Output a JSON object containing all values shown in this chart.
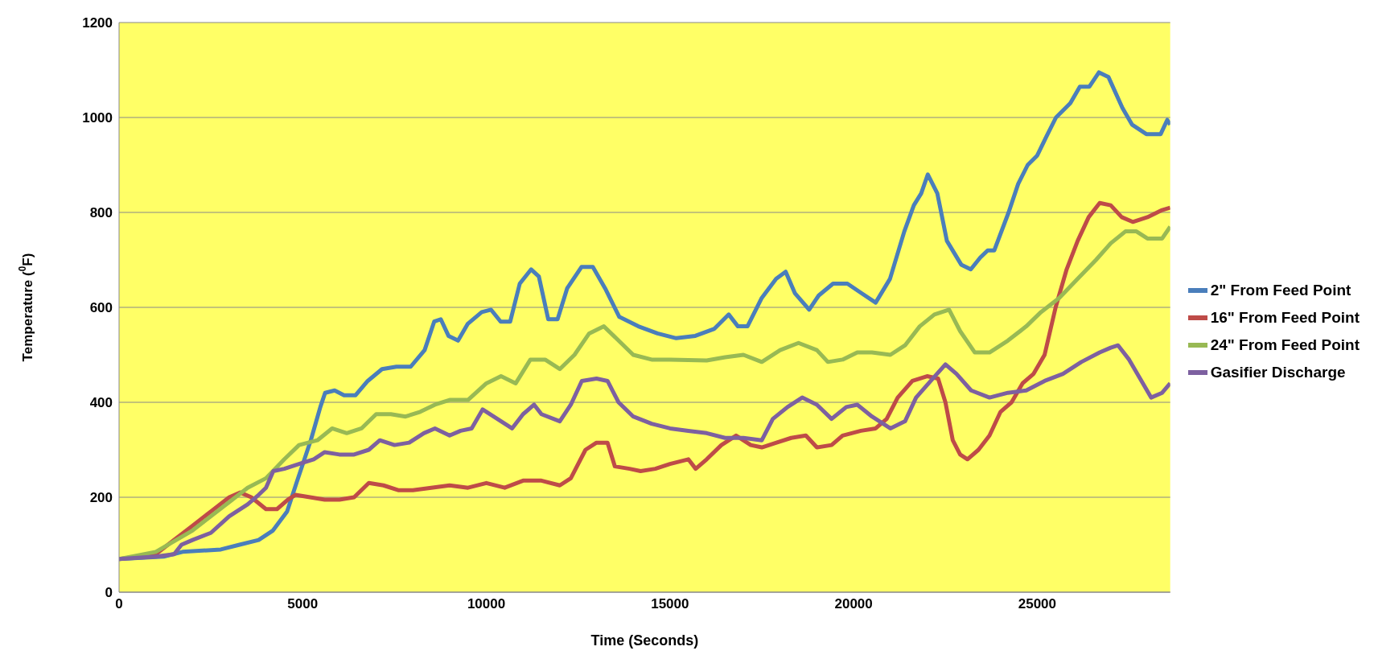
{
  "chart_data": {
    "type": "line",
    "xlabel": "Time (Seconds)",
    "ylabel": "Temperature ($^{0}$F)",
    "xlim": [
      0,
      28620
    ],
    "xticks": [
      0,
      5000,
      10000,
      15000,
      20000,
      25000
    ],
    "ylim": [
      0,
      1200
    ],
    "yticks": [
      0,
      200,
      400,
      600,
      800,
      1000,
      1200
    ],
    "grid": "y",
    "legend": "right",
    "marker": "none",
    "line_style": "solid",
    "series": [
      {
        "name": "2\" From Feed Point",
        "color": "#4a7ebb",
        "x": [
          0,
          1215,
          1730,
          2770,
          3280,
          3800,
          4190,
          4575,
          4830,
          5220,
          5480,
          5610,
          5870,
          6125,
          6440,
          6770,
          7160,
          7550,
          7940,
          8320,
          8580,
          8760,
          8970,
          9230,
          9490,
          9875,
          10130,
          10390,
          10650,
          10910,
          11220,
          11430,
          11685,
          11940,
          12200,
          12590,
          12900,
          13235,
          13620,
          14140,
          14660,
          15170,
          15690,
          16210,
          16600,
          16850,
          17110,
          17500,
          17890,
          18150,
          18400,
          18790,
          19050,
          19440,
          19830,
          20210,
          20600,
          20990,
          21380,
          21640,
          21840,
          22020,
          22280,
          22540,
          22930,
          23190,
          23450,
          23650,
          23830,
          24220,
          24480,
          24740,
          25000,
          25250,
          25510,
          25900,
          26160,
          26420,
          26680,
          26940,
          27320,
          27580,
          27970,
          28360,
          28540,
          28620
        ],
        "values": [
          70,
          75,
          85,
          90,
          100,
          110,
          130,
          170,
          230,
          320,
          390,
          420,
          425,
          415,
          415,
          445,
          470,
          475,
          475,
          510,
          570,
          575,
          540,
          530,
          565,
          590,
          595,
          570,
          570,
          650,
          680,
          665,
          575,
          575,
          640,
          685,
          685,
          640,
          580,
          560,
          545,
          535,
          540,
          555,
          585,
          560,
          560,
          620,
          660,
          675,
          630,
          595,
          625,
          650,
          650,
          630,
          610,
          660,
          760,
          815,
          840,
          880,
          840,
          740,
          690,
          680,
          705,
          720,
          720,
          800,
          860,
          900,
          920,
          960,
          1000,
          1030,
          1065,
          1065,
          1095,
          1085,
          1020,
          985,
          965,
          965,
          995,
          985
        ]
      },
      {
        "name": "16\" From Feed Point",
        "color": "#be4b48",
        "x": [
          0,
          1000,
          1500,
          2000,
          2500,
          3000,
          3300,
          3600,
          4000,
          4300,
          4600,
          4800,
          5200,
          5600,
          6000,
          6400,
          6800,
          7200,
          7600,
          8000,
          8500,
          9000,
          9500,
          10000,
          10500,
          11000,
          11500,
          12000,
          12300,
          12700,
          13000,
          13300,
          13500,
          13900,
          14200,
          14600,
          15000,
          15500,
          15700,
          16000,
          16400,
          16800,
          17200,
          17500,
          17900,
          18300,
          18700,
          19000,
          19400,
          19700,
          20200,
          20600,
          20900,
          21200,
          21600,
          22000,
          22300,
          22500,
          22700,
          22900,
          23100,
          23400,
          23700,
          24000,
          24300,
          24600,
          24900,
          25200,
          25500,
          25800,
          26100,
          26400,
          26700,
          27000,
          27300,
          27600,
          28000,
          28400,
          28620
        ],
        "values": [
          70,
          80,
          110,
          140,
          170,
          200,
          210,
          200,
          175,
          175,
          195,
          205,
          200,
          195,
          195,
          200,
          230,
          225,
          215,
          215,
          220,
          225,
          220,
          230,
          220,
          235,
          235,
          225,
          240,
          300,
          315,
          315,
          265,
          260,
          255,
          260,
          270,
          280,
          260,
          280,
          310,
          330,
          310,
          305,
          315,
          325,
          330,
          305,
          310,
          330,
          340,
          345,
          365,
          410,
          445,
          455,
          450,
          400,
          320,
          290,
          280,
          300,
          330,
          380,
          400,
          440,
          460,
          500,
          600,
          680,
          740,
          790,
          820,
          815,
          790,
          780,
          790,
          805,
          810
        ]
      },
      {
        "name": "24\" From Feed Point",
        "color": "#98b954",
        "x": [
          0,
          1000,
          2000,
          3000,
          3500,
          4000,
          4500,
          4900,
          5400,
          5800,
          6200,
          6600,
          7000,
          7400,
          7800,
          8200,
          8600,
          9000,
          9500,
          10000,
          10400,
          10800,
          11200,
          11600,
          12000,
          12400,
          12800,
          13200,
          13600,
          14000,
          14500,
          15000,
          16000,
          16500,
          17000,
          17500,
          18000,
          18500,
          19000,
          19300,
          19700,
          20100,
          20500,
          21000,
          21400,
          21800,
          22200,
          22600,
          22900,
          23300,
          23700,
          24200,
          24700,
          25100,
          25600,
          26100,
          26600,
          27000,
          27400,
          27700,
          28000,
          28400,
          28620
        ],
        "values": [
          70,
          85,
          130,
          190,
          220,
          240,
          280,
          310,
          320,
          345,
          335,
          345,
          375,
          375,
          370,
          380,
          395,
          405,
          405,
          440,
          455,
          440,
          490,
          490,
          470,
          500,
          545,
          560,
          530,
          500,
          490,
          490,
          488,
          495,
          500,
          485,
          510,
          525,
          510,
          485,
          490,
          505,
          505,
          500,
          520,
          560,
          585,
          595,
          550,
          505,
          505,
          530,
          560,
          590,
          620,
          660,
          700,
          735,
          760,
          760,
          745,
          745,
          770
        ]
      },
      {
        "name": "Gasifier Discharge",
        "color": "#7d60a0",
        "x": [
          0,
          1000,
          1500,
          1700,
          2000,
          2500,
          3000,
          3500,
          3800,
          4000,
          4200,
          4500,
          4900,
          5300,
          5600,
          6000,
          6400,
          6800,
          7100,
          7500,
          7900,
          8300,
          8600,
          9000,
          9300,
          9600,
          9900,
          10300,
          10700,
          11000,
          11300,
          11500,
          12000,
          12300,
          12600,
          13000,
          13300,
          13600,
          14000,
          14500,
          15000,
          15500,
          16000,
          16500,
          17000,
          17500,
          17800,
          18200,
          18600,
          19000,
          19400,
          19800,
          20100,
          20500,
          21000,
          21400,
          21700,
          22100,
          22500,
          22800,
          23200,
          23700,
          24200,
          24700,
          25200,
          25700,
          26200,
          26700,
          27000,
          27200,
          27500,
          27800,
          28100,
          28400,
          28620
        ],
        "values": [
          70,
          75,
          80,
          100,
          110,
          125,
          160,
          185,
          205,
          220,
          255,
          260,
          270,
          280,
          295,
          290,
          290,
          300,
          320,
          310,
          315,
          335,
          345,
          330,
          340,
          345,
          385,
          365,
          345,
          375,
          395,
          375,
          360,
          395,
          445,
          450,
          445,
          400,
          370,
          355,
          345,
          340,
          335,
          325,
          325,
          320,
          365,
          390,
          410,
          395,
          365,
          390,
          395,
          370,
          345,
          360,
          410,
          445,
          480,
          460,
          425,
          410,
          420,
          425,
          445,
          460,
          485,
          505,
          515,
          520,
          490,
          450,
          410,
          420,
          440
        ]
      }
    ]
  }
}
